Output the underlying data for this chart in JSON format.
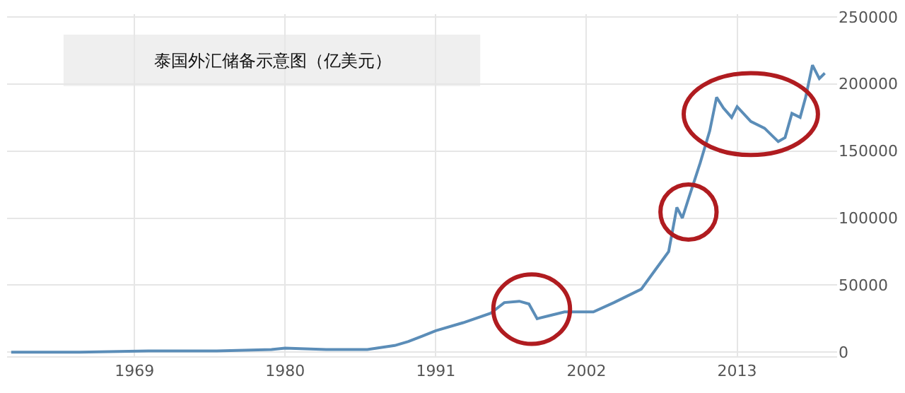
{
  "chart_data": {
    "type": "line",
    "title": "泰国外汇储备示意图（亿美元）",
    "x": [
      1960,
      1965,
      1970,
      1975,
      1979,
      1980,
      1983,
      1986,
      1988,
      1989,
      1990,
      1991,
      1993,
      1995,
      1996,
      1997.1,
      1997.8,
      1998.4,
      1999.2,
      2000.4,
      2002.5,
      2004,
      2006,
      2007,
      2008,
      2008.6,
      2009,
      2009.5,
      2010.3,
      2011,
      2011.5,
      2012,
      2012.6,
      2013,
      2014,
      2015,
      2016,
      2016.5,
      2017,
      2017.6,
      2018,
      2018.5,
      2019,
      2019.4
    ],
    "series": [
      {
        "color": "#5b8db8",
        "values": [
          0,
          0,
          1000,
          1000,
          2000,
          3000,
          2000,
          2000,
          5000,
          8000,
          12000,
          16000,
          22000,
          29000,
          37000,
          38000,
          36000,
          25000,
          27000,
          30000,
          30000,
          37000,
          47000,
          61000,
          75000,
          108000,
          100000,
          116000,
          141000,
          165000,
          190000,
          182000,
          175000,
          183000,
          172000,
          167000,
          157000,
          160000,
          178000,
          175000,
          190000,
          214000,
          204000,
          208000
        ]
      }
    ],
    "xlim": [
      1959.7,
      2020.3
    ],
    "xticks": [
      1969,
      1980,
      1991,
      2002,
      2013
    ],
    "ylim": [
      -3000,
      252000
    ],
    "yticks": [
      0,
      50000,
      100000,
      150000,
      200000,
      250000
    ],
    "grid": true,
    "marker": "none",
    "line_style": "solid"
  }
}
